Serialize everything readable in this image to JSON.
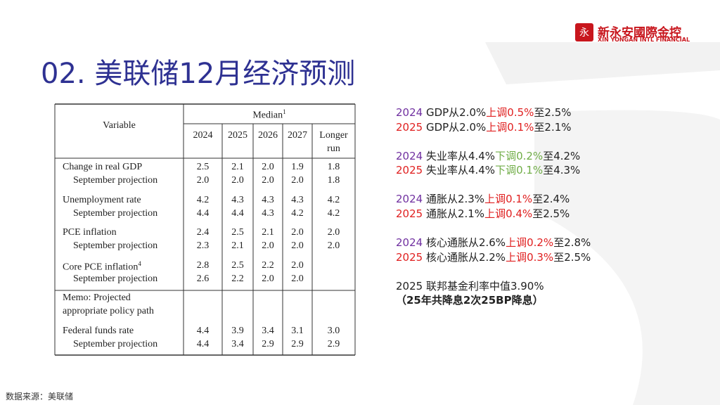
{
  "header": {
    "title": "02. 美联储12月经济预测",
    "logo_name": "新永安國際金控",
    "logo_sub": "XIN YONGAN INTL FINANCIAL"
  },
  "table": {
    "variable_header": "Variable",
    "median_label": "Median",
    "median_sup": "1",
    "columns": [
      "2024",
      "2025",
      "2026",
      "2027",
      "Longer run"
    ],
    "rows": [
      {
        "label": "Change in real GDP",
        "values": [
          "2.5",
          "2.1",
          "2.0",
          "1.9",
          "1.8"
        ]
      },
      {
        "label": "September projection",
        "values": [
          "2.0",
          "2.0",
          "2.0",
          "2.0",
          "1.8"
        ]
      },
      {
        "label": "Unemployment rate",
        "values": [
          "4.2",
          "4.3",
          "4.3",
          "4.3",
          "4.2"
        ]
      },
      {
        "label": "September projection",
        "values": [
          "4.4",
          "4.4",
          "4.3",
          "4.2",
          "4.2"
        ]
      },
      {
        "label": "PCE inflation",
        "values": [
          "2.4",
          "2.5",
          "2.1",
          "2.0",
          "2.0"
        ]
      },
      {
        "label": "September projection",
        "values": [
          "2.3",
          "2.1",
          "2.0",
          "2.0",
          "2.0"
        ]
      },
      {
        "label": "Core PCE inflation",
        "sup": "4",
        "values": [
          "2.8",
          "2.5",
          "2.2",
          "2.0",
          null
        ]
      },
      {
        "label": "September projection",
        "values": [
          "2.6",
          "2.2",
          "2.0",
          "2.0",
          null
        ]
      }
    ],
    "memo": [
      "Memo: Projected",
      "appropriate policy path"
    ],
    "memo_rows": [
      {
        "label": "Federal funds rate",
        "values": [
          "4.4",
          "3.9",
          "3.4",
          "3.1",
          "3.0"
        ]
      },
      {
        "label": "September projection",
        "values": [
          "4.4",
          "3.4",
          "2.9",
          "2.9",
          "2.9"
        ]
      }
    ]
  },
  "notes": [
    [
      {
        "text": "2024",
        "color": "#7030a0"
      },
      {
        "text": " GDP从2.0%",
        "color": "#222222"
      },
      {
        "text": "上调0.5%",
        "color": "#e02020"
      },
      {
        "text": "至2.5%",
        "color": "#222222"
      }
    ],
    [
      {
        "text": "2025",
        "color": "#e02020"
      },
      {
        "text": " GDP从2.0%",
        "color": "#222222"
      },
      {
        "text": "上调0.1%",
        "color": "#e02020"
      },
      {
        "text": "至2.1%",
        "color": "#222222"
      }
    ],
    [
      {
        "text": "2024",
        "color": "#7030a0"
      },
      {
        "text": " 失业率从4.4%",
        "color": "#222222"
      },
      {
        "text": "下调0.2%",
        "color": "#70ad47"
      },
      {
        "text": "至4.2%",
        "color": "#222222"
      }
    ],
    [
      {
        "text": "2025",
        "color": "#e02020"
      },
      {
        "text": " 失业率从4.4%",
        "color": "#222222"
      },
      {
        "text": "下调0.1%",
        "color": "#70ad47"
      },
      {
        "text": "至4.3%",
        "color": "#222222"
      }
    ],
    [
      {
        "text": "2024",
        "color": "#7030a0"
      },
      {
        "text": " 通胀从2.3%",
        "color": "#222222"
      },
      {
        "text": "上调0.1%",
        "color": "#e02020"
      },
      {
        "text": "至2.4%",
        "color": "#222222"
      }
    ],
    [
      {
        "text": "2025",
        "color": "#e02020"
      },
      {
        "text": " 通胀从2.1%",
        "color": "#222222"
      },
      {
        "text": "上调0.4%",
        "color": "#e02020"
      },
      {
        "text": "至2.5%",
        "color": "#222222"
      }
    ],
    [
      {
        "text": "2024",
        "color": "#7030a0"
      },
      {
        "text": " 核心通胀从2.6%",
        "color": "#222222"
      },
      {
        "text": "上调0.2%",
        "color": "#e02020"
      },
      {
        "text": "至2.8%",
        "color": "#222222"
      }
    ],
    [
      {
        "text": "2025",
        "color": "#e02020"
      },
      {
        "text": " 核心通胀从2.2%",
        "color": "#222222"
      },
      {
        "text": "上调0.3%",
        "color": "#e02020"
      },
      {
        "text": "至2.5%",
        "color": "#222222"
      }
    ],
    [
      {
        "text": "2025 联邦基金利率中值3.90%",
        "color": "#222222"
      }
    ],
    [
      {
        "text": "（25年共降息2次25BP降息）",
        "color": "#222222",
        "bold": true
      }
    ]
  ],
  "footer": {
    "source": "数据来源：美联储"
  }
}
